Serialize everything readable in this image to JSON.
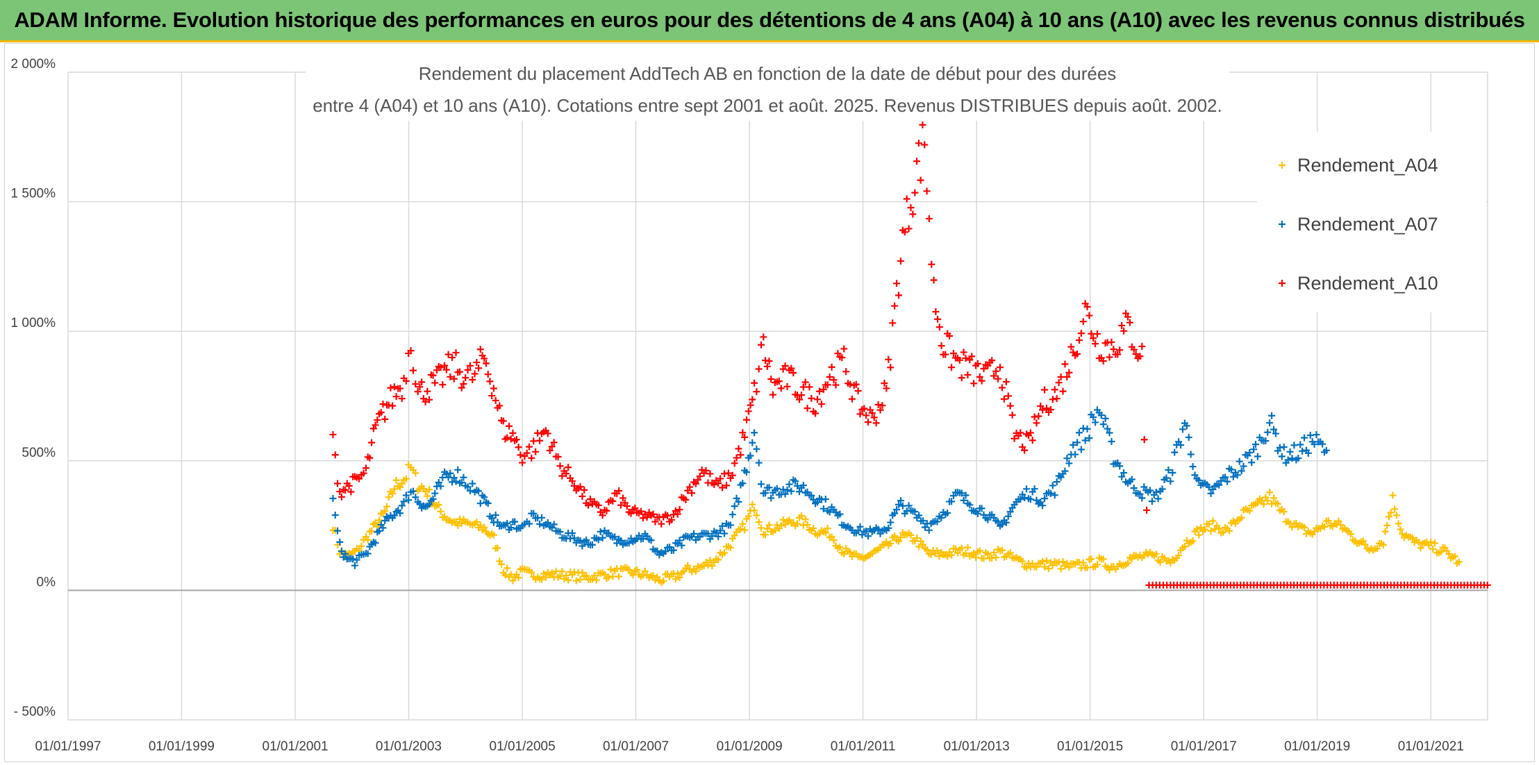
{
  "banner": {
    "title": "ADAM Informe. Evolution historique des performances en euros pour des détentions de 4 ans (A04) à 10 ans (A10) avec les revenus connus distribués"
  },
  "colors": {
    "banner_bg": "#7cc576",
    "banner_border": "#f2b600",
    "A04": "#ffc000",
    "A07": "#0070c0",
    "A10": "#ff0000",
    "grid": "#d9d9d9",
    "zero_line": "#a6a6a6"
  },
  "chart_data": {
    "type": "scatter",
    "marker": "plus",
    "title_lines": [
      "Rendement du placement AddTech AB en fonction de la date de début pour des durées",
      "entre 4 (A04) et 10 ans (A10). Cotations entre sept 2001 et août. 2025. Revenus DISTRIBUES depuis août. 2002."
    ],
    "x_type": "date",
    "xlim": [
      "1997-01-01",
      "2022-01-01"
    ],
    "x_ticks": [
      "1997-01-01",
      "1999-01-01",
      "2001-01-01",
      "2003-01-01",
      "2005-01-01",
      "2007-01-01",
      "2009-01-01",
      "2011-01-01",
      "2013-01-01",
      "2015-01-01",
      "2017-01-01",
      "2019-01-01",
      "2021-01-01"
    ],
    "x_tick_labels": [
      "01/01/1997",
      "01/01/1999",
      "01/01/2001",
      "01/01/2003",
      "01/01/2005",
      "01/01/2007",
      "01/01/2009",
      "01/01/2011",
      "01/01/2013",
      "01/01/2015",
      "01/01/2017",
      "01/01/2019",
      "01/01/2021"
    ],
    "ylim": [
      -500,
      2000
    ],
    "y_ticks": [
      -500,
      0,
      500,
      1000,
      1500,
      2000
    ],
    "y_tick_labels": [
      "- 500%",
      "0%",
      "500%",
      "1 000%",
      "1 500%",
      "2 000%"
    ],
    "y_unit": "%",
    "grid": true,
    "legend_position": "right",
    "series": [
      {
        "name": "Rendement_A04",
        "color": "#ffc000",
        "points": [
          [
            "2001-09-01",
            250
          ],
          [
            "2001-10-15",
            150
          ],
          [
            "2001-12-01",
            130
          ],
          [
            "2002-02-01",
            150
          ],
          [
            "2002-04-01",
            200
          ],
          [
            "2002-06-01",
            250
          ],
          [
            "2002-08-01",
            300
          ],
          [
            "2002-10-01",
            400
          ],
          [
            "2002-12-01",
            430
          ],
          [
            "2003-01-15",
            470
          ],
          [
            "2003-03-01",
            410
          ],
          [
            "2003-05-01",
            380
          ],
          [
            "2003-07-01",
            320
          ],
          [
            "2003-09-01",
            280
          ],
          [
            "2003-11-01",
            260
          ],
          [
            "2004-01-01",
            260
          ],
          [
            "2004-03-01",
            250
          ],
          [
            "2004-05-01",
            240
          ],
          [
            "2004-07-01",
            200
          ],
          [
            "2004-09-01",
            80
          ],
          [
            "2004-11-01",
            50
          ],
          [
            "2005-01-01",
            70
          ],
          [
            "2005-03-01",
            60
          ],
          [
            "2005-06-01",
            60
          ],
          [
            "2005-09-01",
            60
          ],
          [
            "2005-12-01",
            55
          ],
          [
            "2006-03-01",
            50
          ],
          [
            "2006-06-01",
            60
          ],
          [
            "2006-09-01",
            70
          ],
          [
            "2006-12-01",
            70
          ],
          [
            "2007-03-01",
            60
          ],
          [
            "2007-06-01",
            40
          ],
          [
            "2007-09-01",
            50
          ],
          [
            "2007-12-01",
            80
          ],
          [
            "2008-03-01",
            90
          ],
          [
            "2008-06-01",
            120
          ],
          [
            "2008-09-01",
            180
          ],
          [
            "2008-12-01",
            250
          ],
          [
            "2009-02-01",
            330
          ],
          [
            "2009-04-01",
            230
          ],
          [
            "2009-06-01",
            240
          ],
          [
            "2009-09-01",
            260
          ],
          [
            "2009-12-01",
            270
          ],
          [
            "2010-03-01",
            230
          ],
          [
            "2010-06-01",
            220
          ],
          [
            "2010-09-01",
            150
          ],
          [
            "2010-12-01",
            120
          ],
          [
            "2011-03-01",
            140
          ],
          [
            "2011-06-01",
            170
          ],
          [
            "2011-09-01",
            210
          ],
          [
            "2011-12-01",
            200
          ],
          [
            "2012-03-01",
            140
          ],
          [
            "2012-06-01",
            140
          ],
          [
            "2012-09-01",
            150
          ],
          [
            "2012-12-01",
            150
          ],
          [
            "2013-03-01",
            130
          ],
          [
            "2013-06-01",
            150
          ],
          [
            "2013-09-01",
            120
          ],
          [
            "2013-12-01",
            100
          ],
          [
            "2014-03-01",
            100
          ],
          [
            "2014-06-01",
            100
          ],
          [
            "2014-09-01",
            90
          ],
          [
            "2014-12-01",
            100
          ],
          [
            "2015-03-01",
            110
          ],
          [
            "2015-06-01",
            90
          ],
          [
            "2015-09-01",
            120
          ],
          [
            "2015-12-01",
            130
          ],
          [
            "2016-03-01",
            130
          ],
          [
            "2016-06-01",
            110
          ],
          [
            "2016-09-01",
            180
          ],
          [
            "2016-12-01",
            230
          ],
          [
            "2017-03-01",
            250
          ],
          [
            "2017-06-01",
            230
          ],
          [
            "2017-09-01",
            290
          ],
          [
            "2017-12-01",
            320
          ],
          [
            "2018-03-01",
            360
          ],
          [
            "2018-06-01",
            290
          ],
          [
            "2018-09-01",
            240
          ],
          [
            "2018-12-01",
            220
          ],
          [
            "2019-03-01",
            260
          ],
          [
            "2019-06-01",
            250
          ],
          [
            "2019-09-01",
            200
          ],
          [
            "2019-12-01",
            160
          ],
          [
            "2020-03-01",
            190
          ],
          [
            "2020-05-01",
            350
          ],
          [
            "2020-07-01",
            220
          ],
          [
            "2020-10-01",
            180
          ],
          [
            "2021-01-01",
            170
          ],
          [
            "2021-04-01",
            150
          ],
          [
            "2021-07-01",
            110
          ]
        ]
      },
      {
        "name": "Rendement_A07",
        "color": "#0070c0",
        "points": [
          [
            "2001-09-01",
            340
          ],
          [
            "2001-10-15",
            170
          ],
          [
            "2001-12-01",
            120
          ],
          [
            "2002-02-01",
            110
          ],
          [
            "2002-04-01",
            140
          ],
          [
            "2002-06-01",
            200
          ],
          [
            "2002-08-01",
            260
          ],
          [
            "2002-10-01",
            300
          ],
          [
            "2002-12-01",
            330
          ],
          [
            "2003-01-15",
            390
          ],
          [
            "2003-03-01",
            350
          ],
          [
            "2003-05-01",
            320
          ],
          [
            "2003-07-01",
            380
          ],
          [
            "2003-09-01",
            440
          ],
          [
            "2003-11-01",
            450
          ],
          [
            "2004-01-01",
            420
          ],
          [
            "2004-03-01",
            390
          ],
          [
            "2004-05-01",
            340
          ],
          [
            "2004-07-01",
            280
          ],
          [
            "2004-09-01",
            240
          ],
          [
            "2004-11-01",
            260
          ],
          [
            "2005-01-01",
            240
          ],
          [
            "2005-03-01",
            280
          ],
          [
            "2005-06-01",
            260
          ],
          [
            "2005-09-01",
            220
          ],
          [
            "2005-12-01",
            200
          ],
          [
            "2006-03-01",
            180
          ],
          [
            "2006-06-01",
            220
          ],
          [
            "2006-09-01",
            190
          ],
          [
            "2006-12-01",
            200
          ],
          [
            "2007-03-01",
            210
          ],
          [
            "2007-06-01",
            140
          ],
          [
            "2007-09-01",
            160
          ],
          [
            "2007-12-01",
            200
          ],
          [
            "2008-03-01",
            210
          ],
          [
            "2008-06-01",
            220
          ],
          [
            "2008-09-01",
            250
          ],
          [
            "2008-12-01",
            450
          ],
          [
            "2009-02-01",
            620
          ],
          [
            "2009-04-01",
            380
          ],
          [
            "2009-06-01",
            380
          ],
          [
            "2009-09-01",
            400
          ],
          [
            "2009-12-01",
            400
          ],
          [
            "2010-03-01",
            360
          ],
          [
            "2010-06-01",
            320
          ],
          [
            "2010-09-01",
            260
          ],
          [
            "2010-12-01",
            230
          ],
          [
            "2011-03-01",
            220
          ],
          [
            "2011-06-01",
            240
          ],
          [
            "2011-09-01",
            330
          ],
          [
            "2011-12-01",
            290
          ],
          [
            "2012-03-01",
            250
          ],
          [
            "2012-06-01",
            300
          ],
          [
            "2012-09-01",
            370
          ],
          [
            "2012-12-01",
            330
          ],
          [
            "2013-03-01",
            300
          ],
          [
            "2013-06-01",
            240
          ],
          [
            "2013-09-01",
            330
          ],
          [
            "2013-12-01",
            380
          ],
          [
            "2014-03-01",
            350
          ],
          [
            "2014-06-01",
            400
          ],
          [
            "2014-09-01",
            540
          ],
          [
            "2014-12-01",
            600
          ],
          [
            "2015-03-01",
            700
          ],
          [
            "2015-06-01",
            520
          ],
          [
            "2015-09-01",
            420
          ],
          [
            "2015-12-01",
            380
          ],
          [
            "2016-03-01",
            360
          ],
          [
            "2016-06-01",
            450
          ],
          [
            "2016-09-01",
            650
          ],
          [
            "2016-12-01",
            400
          ],
          [
            "2017-03-01",
            380
          ],
          [
            "2017-06-01",
            440
          ],
          [
            "2017-09-01",
            480
          ],
          [
            "2017-12-01",
            540
          ],
          [
            "2018-03-01",
            650
          ],
          [
            "2018-06-01",
            520
          ],
          [
            "2018-09-01",
            530
          ],
          [
            "2018-12-01",
            580
          ],
          [
            "2019-03-01",
            540
          ]
        ]
      },
      {
        "name": "Rendement_A10",
        "color": "#ff0000",
        "points": [
          [
            "2001-09-01",
            570
          ],
          [
            "2001-10-15",
            380
          ],
          [
            "2001-12-01",
            400
          ],
          [
            "2002-02-01",
            420
          ],
          [
            "2002-04-01",
            460
          ],
          [
            "2002-06-01",
            620
          ],
          [
            "2002-08-01",
            700
          ],
          [
            "2002-10-01",
            760
          ],
          [
            "2002-12-01",
            800
          ],
          [
            "2003-01-15",
            980
          ],
          [
            "2003-03-01",
            760
          ],
          [
            "2003-05-01",
            780
          ],
          [
            "2003-07-01",
            800
          ],
          [
            "2003-09-01",
            850
          ],
          [
            "2003-11-01",
            860
          ],
          [
            "2004-01-01",
            820
          ],
          [
            "2004-03-01",
            830
          ],
          [
            "2004-05-01",
            900
          ],
          [
            "2004-07-01",
            780
          ],
          [
            "2004-09-01",
            620
          ],
          [
            "2004-11-01",
            600
          ],
          [
            "2005-01-01",
            520
          ],
          [
            "2005-03-01",
            540
          ],
          [
            "2005-06-01",
            620
          ],
          [
            "2005-09-01",
            480
          ],
          [
            "2005-12-01",
            420
          ],
          [
            "2006-03-01",
            340
          ],
          [
            "2006-06-01",
            300
          ],
          [
            "2006-09-01",
            370
          ],
          [
            "2006-12-01",
            300
          ],
          [
            "2007-03-01",
            290
          ],
          [
            "2007-06-01",
            270
          ],
          [
            "2007-09-01",
            290
          ],
          [
            "2007-12-01",
            380
          ],
          [
            "2008-03-01",
            460
          ],
          [
            "2008-06-01",
            400
          ],
          [
            "2008-09-01",
            440
          ],
          [
            "2008-12-01",
            600
          ],
          [
            "2009-02-01",
            760
          ],
          [
            "2009-04-01",
            950
          ],
          [
            "2009-06-01",
            780
          ],
          [
            "2009-09-01",
            820
          ],
          [
            "2009-12-01",
            770
          ],
          [
            "2010-03-01",
            730
          ],
          [
            "2010-06-01",
            830
          ],
          [
            "2010-09-01",
            880
          ],
          [
            "2010-12-01",
            720
          ],
          [
            "2011-03-01",
            660
          ],
          [
            "2011-06-01",
            770
          ],
          [
            "2011-09-01",
            1300
          ],
          [
            "2011-12-01",
            1600
          ],
          [
            "2012-02-01",
            1730
          ],
          [
            "2012-04-01",
            1150
          ],
          [
            "2012-06-01",
            950
          ],
          [
            "2012-09-01",
            880
          ],
          [
            "2012-12-01",
            850
          ],
          [
            "2013-03-01",
            820
          ],
          [
            "2013-06-01",
            870
          ],
          [
            "2013-09-01",
            600
          ],
          [
            "2013-12-01",
            560
          ],
          [
            "2014-03-01",
            720
          ],
          [
            "2014-06-01",
            760
          ],
          [
            "2014-09-01",
            900
          ],
          [
            "2014-12-01",
            1080
          ],
          [
            "2015-03-01",
            950
          ],
          [
            "2015-06-01",
            940
          ],
          [
            "2015-09-01",
            1020
          ],
          [
            "2015-12-01",
            900
          ],
          [
            "2016-01-15",
            20
          ],
          [
            "2016-06-01",
            20
          ],
          [
            "2017-01-01",
            20
          ],
          [
            "2017-06-01",
            20
          ],
          [
            "2018-01-01",
            20
          ],
          [
            "2018-06-01",
            20
          ],
          [
            "2019-01-01",
            20
          ],
          [
            "2019-06-01",
            20
          ],
          [
            "2020-01-01",
            20
          ],
          [
            "2020-06-01",
            20
          ],
          [
            "2021-01-01",
            20
          ],
          [
            "2021-06-01",
            20
          ],
          [
            "2021-12-31",
            20
          ]
        ]
      }
    ]
  }
}
